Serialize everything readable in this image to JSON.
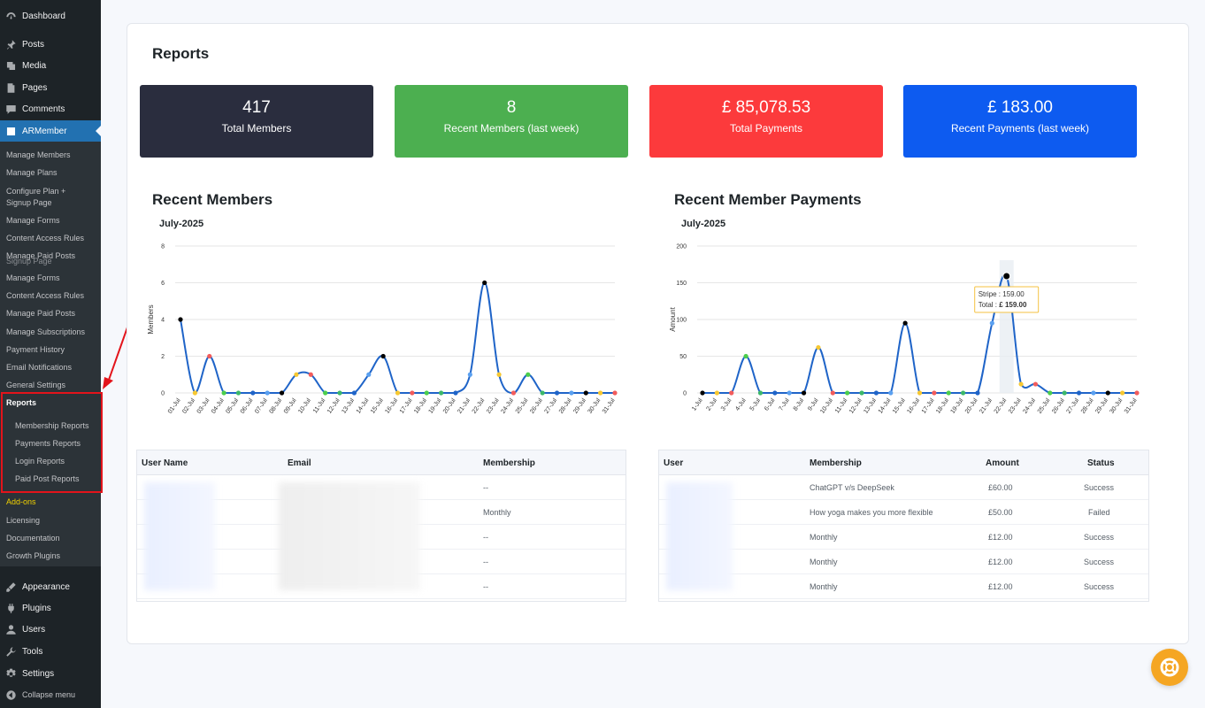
{
  "sidebar": {
    "top_items": [
      {
        "label": "Dashboard",
        "icon": "dashboard-icon"
      },
      {
        "label": "Posts",
        "icon": "pin-icon"
      },
      {
        "label": "Media",
        "icon": "media-icon"
      },
      {
        "label": "Pages",
        "icon": "pages-icon"
      },
      {
        "label": "Comments",
        "icon": "comments-icon"
      },
      {
        "label": "ARMember",
        "icon": "armember-icon"
      }
    ],
    "armember_sub": [
      "Manage Members",
      "Manage Plans",
      "Configure Plan +",
      "Signup Page",
      "Manage Forms",
      "Content Access Rules",
      "Manage Paid Posts",
      "Signup Page",
      "Manage Forms",
      "Content Access Rules",
      "Manage Paid Posts",
      "Manage Subscriptions",
      "Payment History",
      "Email Notifications",
      "General Settings"
    ],
    "reports_label": "Reports",
    "reports_sub": [
      "Membership Reports",
      "Payments Reports",
      "Login Reports",
      "Paid Post Reports"
    ],
    "after_items": [
      "Add-ons",
      "Licensing",
      "Documentation",
      "Growth Plugins"
    ],
    "bottom_items": [
      {
        "label": "Appearance",
        "icon": "appearance-icon"
      },
      {
        "label": "Plugins",
        "icon": "plugins-icon"
      },
      {
        "label": "Users",
        "icon": "users-icon"
      },
      {
        "label": "Tools",
        "icon": "tools-icon"
      },
      {
        "label": "Settings",
        "icon": "settings-icon"
      },
      {
        "label": "Collapse menu",
        "icon": "collapse-icon"
      }
    ]
  },
  "page": {
    "title": "Reports"
  },
  "stats": [
    {
      "value": "417",
      "label": "Total Members",
      "color": "#2a2d3e"
    },
    {
      "value": "8",
      "label": "Recent Members (last week)",
      "color": "#4caf50"
    },
    {
      "value": "£ 85,078.53",
      "label": "Total Payments",
      "color": "#fc3a3c"
    },
    {
      "value": "£ 183.00",
      "label": "Recent Payments (last week)",
      "color": "#0d5bf0"
    }
  ],
  "members_section": {
    "title": "Recent Members",
    "subtitle": "July-2025"
  },
  "payments_section": {
    "title": "Recent Member Payments",
    "subtitle": "July-2025"
  },
  "chart_data": [
    {
      "type": "line",
      "title": "",
      "subtitle": "July-2025",
      "xlabel": "",
      "ylabel": "Members",
      "ylim": [
        0,
        8
      ],
      "yticks": [
        0,
        2,
        4,
        6,
        8
      ],
      "categories": [
        "01-Jul",
        "02-Jul",
        "03-Jul",
        "04-Jul",
        "05-Jul",
        "06-Jul",
        "07-Jul",
        "08-Jul",
        "09-Jul",
        "10-Jul",
        "11-Jul",
        "12-Jul",
        "13-Jul",
        "14-Jul",
        "15-Jul",
        "16-Jul",
        "17-Jul",
        "18-Jul",
        "19-Jul",
        "20-Jul",
        "21-Jul",
        "22-Jul",
        "23-Jul",
        "24-Jul",
        "25-Jul",
        "26-Jul",
        "27-Jul",
        "28-Jul",
        "29-Jul",
        "30-Jul",
        "31-Jul"
      ],
      "series": [
        {
          "values": [
            4,
            0,
            2,
            0,
            0,
            0,
            0,
            0,
            1,
            1,
            0,
            0,
            0,
            1,
            2,
            0,
            0,
            0,
            0,
            0,
            1,
            6,
            1,
            0,
            1,
            0,
            0,
            0,
            0,
            0,
            0
          ]
        }
      ],
      "grid": true,
      "line_color": "#1f64c8",
      "marker_colors": [
        "#000000",
        "#f7c831",
        "#f25c5c",
        "#4cce4c",
        "#3db86a",
        "#1f64c8",
        "#5aa0f0",
        "#000000",
        "#f7c831",
        "#f25c5c",
        "#4cce4c",
        "#3db86a",
        "#1f64c8",
        "#5aa0f0",
        "#000000",
        "#f7c831",
        "#f25c5c",
        "#4cce4c",
        "#3db86a",
        "#1f64c8",
        "#5aa0f0",
        "#000000",
        "#f7c831",
        "#f25c5c",
        "#4cce4c",
        "#3db86a",
        "#1f64c8",
        "#5aa0f0",
        "#000000",
        "#f7c831",
        "#f25c5c"
      ]
    },
    {
      "type": "line",
      "title": "",
      "subtitle": "July-2025",
      "xlabel": "",
      "ylabel": "Amount",
      "ylim": [
        0,
        200
      ],
      "yticks": [
        0,
        50,
        100,
        150,
        200
      ],
      "categories": [
        "1-Jul",
        "2-Jul",
        "3-Jul",
        "4-Jul",
        "5-Jul",
        "6-Jul",
        "7-Jul",
        "8-Jul",
        "9-Jul",
        "10-Jul",
        "11-Jul",
        "12-Jul",
        "13-Jul",
        "14-Jul",
        "15-Jul",
        "16-Jul",
        "17-Jul",
        "18-Jul",
        "19-Jul",
        "20-Jul",
        "21-Jul",
        "22-Jul",
        "23-Jul",
        "24-Jul",
        "25-Jul",
        "26-Jul",
        "27-Jul",
        "28-Jul",
        "29-Jul",
        "30-Jul",
        "31-Jul"
      ],
      "series": [
        {
          "values": [
            0,
            0,
            0,
            50,
            0,
            0,
            0,
            0,
            62,
            0,
            0,
            0,
            0,
            0,
            95,
            0,
            0,
            0,
            0,
            0,
            95,
            159,
            12,
            12,
            0,
            0,
            0,
            0,
            0,
            0,
            0
          ]
        }
      ],
      "grid": true,
      "line_color": "#1f64c8",
      "marker_colors": [
        "#000000",
        "#f7c831",
        "#f25c5c",
        "#4cce4c",
        "#3db86a",
        "#1f64c8",
        "#5aa0f0",
        "#000000",
        "#f7c831",
        "#f25c5c",
        "#4cce4c",
        "#3db86a",
        "#1f64c8",
        "#5aa0f0",
        "#000000",
        "#f7c831",
        "#f25c5c",
        "#4cce4c",
        "#3db86a",
        "#1f64c8",
        "#5aa0f0",
        "#000000",
        "#f7c831",
        "#f25c5c",
        "#4cce4c",
        "#3db86a",
        "#1f64c8",
        "#5aa0f0",
        "#000000",
        "#f7c831",
        "#f25c5c"
      ],
      "highlight_index": 21,
      "tooltip": {
        "line1": "Stripe : 159.00",
        "line2_prefix": "Total : ",
        "line2_value": "£ 159.00"
      }
    }
  ],
  "members_table": {
    "headers": [
      "User Name",
      "Email",
      "Membership"
    ],
    "rows": [
      {
        "membership": "--"
      },
      {
        "membership": "Monthly"
      },
      {
        "membership": "--"
      },
      {
        "membership": "--"
      },
      {
        "membership": "--"
      }
    ]
  },
  "payments_table": {
    "headers": [
      "User",
      "Membership",
      "Amount",
      "Status"
    ],
    "rows": [
      {
        "membership": "ChatGPT v/s DeepSeek",
        "amount": "£60.00",
        "status": "Success"
      },
      {
        "membership": "How yoga makes you more flexible",
        "amount": "£50.00",
        "status": "Failed"
      },
      {
        "membership": "Monthly",
        "amount": "£12.00",
        "status": "Success"
      },
      {
        "membership": "Monthly",
        "amount": "£12.00",
        "status": "Success"
      },
      {
        "membership": "Monthly",
        "amount": "£12.00",
        "status": "Success"
      }
    ]
  },
  "help_icon": "lifebuoy-icon"
}
